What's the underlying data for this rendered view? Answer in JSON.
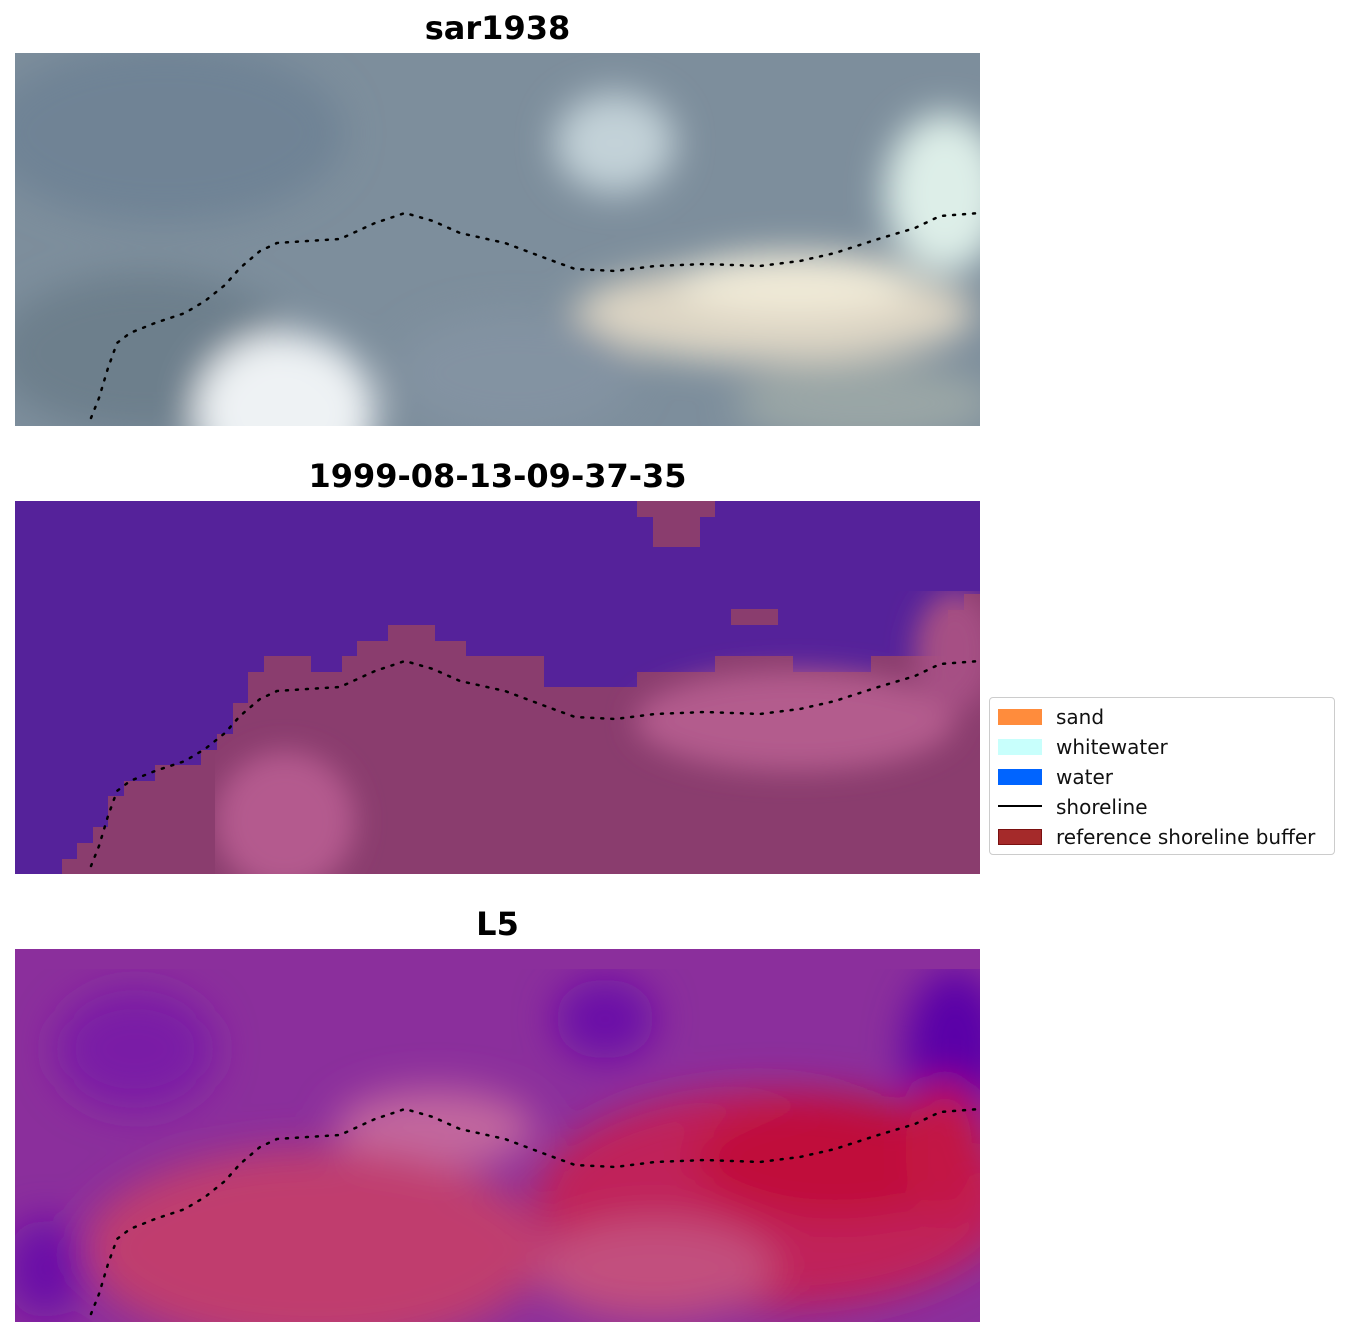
{
  "panels": [
    {
      "title": "sar1938",
      "style": "rgb"
    },
    {
      "title": "1999-08-13-09-37-35",
      "style": "classification"
    },
    {
      "title": "L5",
      "style": "index"
    }
  ],
  "legend": {
    "items": [
      {
        "label": "sand",
        "kind": "patch",
        "color": "#ff8c3c"
      },
      {
        "label": "whitewater",
        "kind": "patch",
        "color": "#c8fffc"
      },
      {
        "label": "water",
        "kind": "patch",
        "color": "#0064ff"
      },
      {
        "label": "shoreline",
        "kind": "line",
        "color": "#000000"
      },
      {
        "label": "reference shoreline buffer",
        "kind": "patch",
        "color": "#a52a2a"
      }
    ]
  },
  "colors": {
    "water_class": "#55229a",
    "buffer_overlay": "#8a3d6e",
    "index_low": "#6a0fa8",
    "index_high": "#c00a3a"
  }
}
